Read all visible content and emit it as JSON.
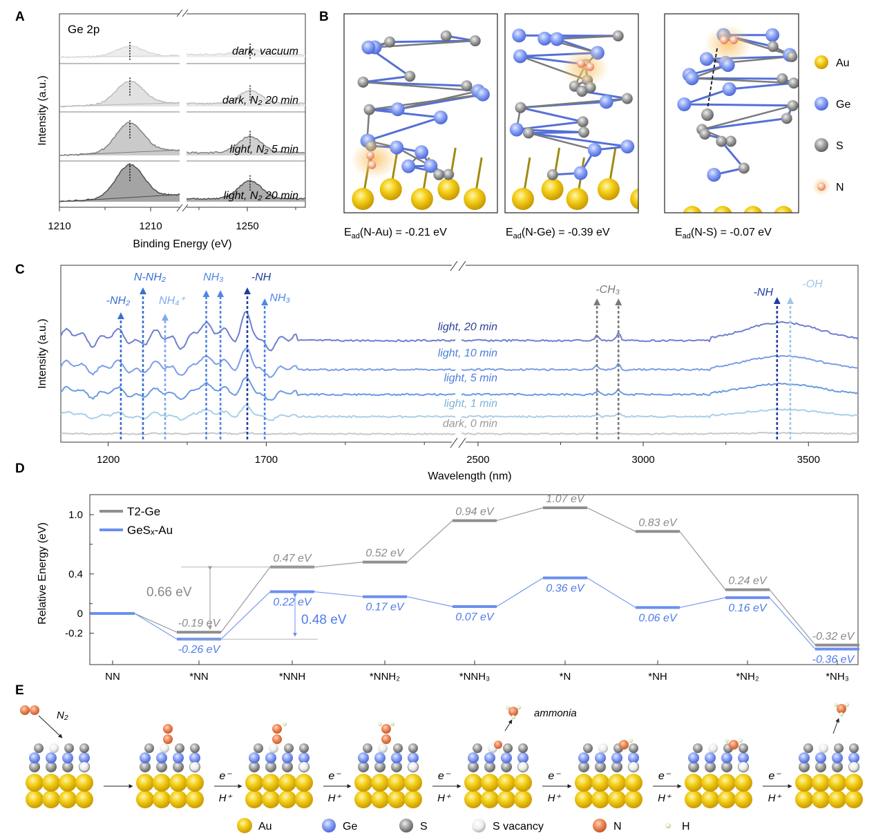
{
  "panel_labels": [
    "A",
    "B",
    "C",
    "D",
    "E"
  ],
  "panelA": {
    "peak_label": "Ge 2p",
    "ylabel": "Intensity (a.u.)",
    "xlabel": "Binding Energy (eV)",
    "xticks": [
      "1210",
      "1210",
      "1250"
    ],
    "rows": [
      {
        "label": "dark, vacuum",
        "peak": 0.25,
        "color": "#d6d6d6",
        "fill": "#ebebeb"
      },
      {
        "label": "dark, N₂ 20 min",
        "peak": 0.6,
        "color": "#b8b8b8",
        "fill": "#dedede"
      },
      {
        "label": "light, N₂ 5 min",
        "peak": 0.75,
        "color": "#7d7d7d",
        "fill": "#c4c4c4"
      },
      {
        "label": "light, N₂ 20 min",
        "peak": 0.9,
        "color": "#4a4a4a",
        "fill": "#9a9a9a"
      }
    ]
  },
  "panelB": {
    "structures": [
      {
        "energy": "E_ad(N-Au) = -0.21 eV",
        "sub": "ad",
        "pre": "E",
        "post": "(N-Au) = -0.21 eV"
      },
      {
        "energy": "E_ad(N-Ge) = -0.39 eV",
        "sub": "ad",
        "pre": "E",
        "post": "(N-Ge) = -0.39 eV"
      },
      {
        "energy": "E_ad(N-S) = -0.07 eV",
        "sub": "ad",
        "pre": "E",
        "post": "(N-S) = -0.07 eV"
      }
    ],
    "legend": [
      "Au",
      "Ge",
      "S",
      "N"
    ],
    "colors": {
      "Au": "#f2c200",
      "Ge": "#6f8ff0",
      "S": "#8c8c8c",
      "N": "#f0a080"
    }
  },
  "panelC": {
    "ylabel": "Intensity (a.u.)",
    "xlabel": "Wavelength (nm)",
    "xticks": [
      "1200",
      "1700",
      "2500",
      "3000",
      "3500"
    ],
    "series": [
      {
        "name": "light, 20 min",
        "color": "#6d7fcf"
      },
      {
        "name": "light, 10 min",
        "color": "#7a9de6"
      },
      {
        "name": "light, 5 min",
        "color": "#6a9ae0"
      },
      {
        "name": "light, 1 min",
        "color": "#a9cfe8"
      },
      {
        "name": "dark, 0 min",
        "color": "#c8c8c8"
      }
    ],
    "annotations": [
      {
        "label": "-NH₂",
        "x": 1240,
        "color": "#3b6fd1"
      },
      {
        "label": "N-NH₂",
        "x": 1310,
        "color": "#3b6fd1"
      },
      {
        "label": "NH₄⁺",
        "x": 1380,
        "color": "#7fa8ee"
      },
      {
        "label": "NH₃",
        "x": 1510,
        "color": "#4f86e8"
      },
      {
        "label": "NH₃",
        "x": 1555,
        "color": "#4f86e8"
      },
      {
        "label": "-NH",
        "x": 1640,
        "color": "#1f3fa0"
      },
      {
        "label": "NH₃",
        "x": 1695,
        "color": "#4f86e8"
      },
      {
        "label": "-CH₃",
        "x": 2860,
        "color": "#7a7a7a"
      },
      {
        "label": "-CH₃",
        "x": 2925,
        "color": "#7a7a7a"
      },
      {
        "label": "-NH",
        "x": 3405,
        "color": "#1f3fa0"
      },
      {
        "label": "-OH",
        "x": 3445,
        "color": "#9cc7ea"
      }
    ]
  },
  "panelD": {
    "ylabel": "Relative Energy (eV)",
    "yticks": [
      "1.0",
      "0.4",
      "0",
      "-0.2"
    ],
    "ylim": [
      -0.36,
      1.2
    ],
    "categories": [
      "NN",
      "*NN",
      "*NNH",
      "*NNH₂",
      "*NNH₃",
      "*N",
      "*NH",
      "*NH₂",
      "*NH₃"
    ],
    "series": [
      {
        "name": "T2-Ge",
        "color": "#8f8f8f",
        "values": [
          0,
          -0.19,
          0.47,
          0.52,
          0.94,
          1.07,
          0.83,
          0.24,
          -0.32
        ],
        "labels": [
          "",
          "-0.19 eV",
          "0.47 eV",
          "0.52 eV",
          "0.94 eV",
          "1.07 eV",
          "0.83 eV",
          "0.24 eV",
          "-0.32 eV"
        ]
      },
      {
        "name": "GeSₓ-Au",
        "color": "#6a8ff0",
        "values": [
          0,
          -0.26,
          0.22,
          0.17,
          0.07,
          0.36,
          0.06,
          0.16,
          -0.36
        ],
        "labels": [
          "",
          "-0.26 eV",
          "0.22 eV",
          "0.17 eV",
          "0.07 eV",
          "0.36 eV",
          "0.06 eV",
          "0.16 eV",
          "-0.36 eV"
        ]
      }
    ],
    "barrier_grey": "0.66 eV",
    "barrier_blue": "0.48 eV"
  },
  "panelE": {
    "n2_label": "N₂",
    "ammonia_label": "ammonia",
    "electron": "e⁻",
    "proton": "H⁺",
    "legend": [
      "Au",
      "Ge",
      "S",
      "S vacancy",
      "N",
      "H"
    ],
    "colors": {
      "Au": "#f2c200",
      "Ge": "#7a95f0",
      "S": "#9a9a9a",
      "S vacancy": "#ececec",
      "N": "#f08a5a",
      "H": "#cfe6b0"
    }
  }
}
